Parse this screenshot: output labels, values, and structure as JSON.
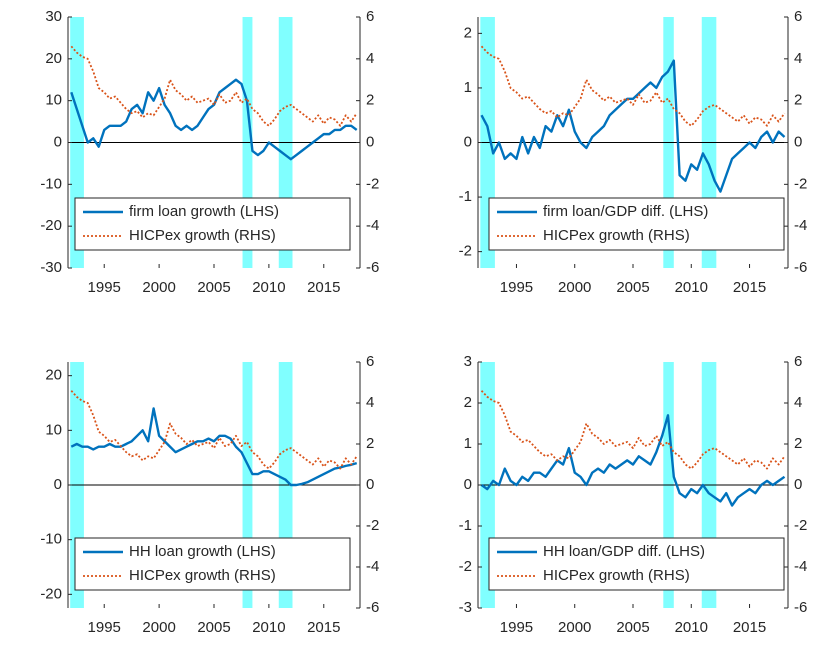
{
  "chart_data": [
    {
      "type": "line",
      "legend": "lower left",
      "xlim": [
        1991.7,
        2018.3
      ],
      "xticks": [
        1995,
        2000,
        2005,
        2010,
        2015
      ],
      "ylim": [
        -30,
        30
      ],
      "yticks": [
        30,
        20,
        10,
        0,
        -10,
        -20,
        -30
      ],
      "y2lim": [
        -6,
        6
      ],
      "y2ticks": [
        6,
        4,
        2,
        0,
        -2,
        -4,
        -6
      ],
      "hlines": [
        0
      ],
      "band_color": "#80ffff",
      "shaded_regions": [
        [
          1991.9,
          1993.15
        ],
        [
          2007.6,
          2008.5
        ],
        [
          2010.9,
          2012.15
        ]
      ],
      "x": [
        1992,
        1992.5,
        1993,
        1993.5,
        1994,
        1994.5,
        1995,
        1995.5,
        1996,
        1996.5,
        1997,
        1997.5,
        1998,
        1998.5,
        1999,
        1999.5,
        2000,
        2000.5,
        2001,
        2001.5,
        2002,
        2002.5,
        2003,
        2003.5,
        2004,
        2004.5,
        2005,
        2005.5,
        2006,
        2006.5,
        2007,
        2007.5,
        2008,
        2008.5,
        2009,
        2009.5,
        2010,
        2010.5,
        2011,
        2011.5,
        2012,
        2012.5,
        2013,
        2013.5,
        2014,
        2014.5,
        2015,
        2015.5,
        2016,
        2016.5,
        2017,
        2017.5,
        2018
      ],
      "series": [
        {
          "name": "firm loan growth (LHS)",
          "color": "#0072bd",
          "dash": "solid",
          "axis": "y",
          "values": [
            12,
            8,
            4,
            0,
            1,
            -1,
            3,
            4,
            4,
            4,
            5,
            8,
            9,
            7,
            12,
            10,
            13,
            9,
            7,
            4,
            3,
            4,
            3,
            4,
            6,
            8,
            9,
            12,
            13,
            14,
            15,
            14,
            10,
            -2,
            -3,
            -2,
            0,
            -1,
            -2,
            -3,
            -4,
            -3,
            -2,
            -1,
            0,
            1,
            2,
            2,
            3,
            3,
            4,
            4,
            3
          ]
        },
        {
          "name": "HICPex growth (RHS)",
          "color": "#d95319",
          "dash": "dotted",
          "axis": "y2",
          "values": [
            4.6,
            4.3,
            4.1,
            4.0,
            3.4,
            2.6,
            2.4,
            2.1,
            2.2,
            1.9,
            1.6,
            1.4,
            1.5,
            1.2,
            1.4,
            1.3,
            1.7,
            2.1,
            3.0,
            2.5,
            2.3,
            2.0,
            2.2,
            1.9,
            2.0,
            2.1,
            1.8,
            2.3,
            1.9,
            2.0,
            2.4,
            1.9,
            2.1,
            1.6,
            1.4,
            1.0,
            0.8,
            1.1,
            1.5,
            1.7,
            1.8,
            1.6,
            1.4,
            1.2,
            1.0,
            1.3,
            0.9,
            1.2,
            1.1,
            0.8,
            1.3,
            1.0,
            1.4
          ]
        }
      ]
    },
    {
      "type": "line",
      "legend": "lower right",
      "xlim": [
        1991.7,
        2018.3
      ],
      "xticks": [
        1995,
        2000,
        2005,
        2010,
        2015
      ],
      "ylim": [
        -2.3,
        2.3
      ],
      "yticks": [
        2,
        1,
        0,
        -1,
        -2
      ],
      "y2lim": [
        -6,
        6
      ],
      "y2ticks": [
        6,
        4,
        2,
        0,
        -2,
        -4,
        -6
      ],
      "hlines": [
        0
      ],
      "band_color": "#80ffff",
      "shaded_regions": [
        [
          1991.9,
          1993.15
        ],
        [
          2007.6,
          2008.5
        ],
        [
          2010.9,
          2012.15
        ]
      ],
      "x": [
        1992,
        1992.5,
        1993,
        1993.5,
        1994,
        1994.5,
        1995,
        1995.5,
        1996,
        1996.5,
        1997,
        1997.5,
        1998,
        1998.5,
        1999,
        1999.5,
        2000,
        2000.5,
        2001,
        2001.5,
        2002,
        2002.5,
        2003,
        2003.5,
        2004,
        2004.5,
        2005,
        2005.5,
        2006,
        2006.5,
        2007,
        2007.5,
        2008,
        2008.5,
        2009,
        2009.5,
        2010,
        2010.5,
        2011,
        2011.5,
        2012,
        2012.5,
        2013,
        2013.5,
        2014,
        2014.5,
        2015,
        2015.5,
        2016,
        2016.5,
        2017,
        2017.5,
        2018
      ],
      "series": [
        {
          "name": "firm loan/GDP diff. (LHS)",
          "color": "#0072bd",
          "dash": "solid",
          "axis": "y",
          "values": [
            0.5,
            0.3,
            -0.2,
            0.0,
            -0.3,
            -0.2,
            -0.3,
            0.1,
            -0.2,
            0.1,
            -0.1,
            0.3,
            0.2,
            0.5,
            0.3,
            0.6,
            0.2,
            0.0,
            -0.1,
            0.1,
            0.2,
            0.3,
            0.5,
            0.6,
            0.7,
            0.8,
            0.8,
            0.9,
            1.0,
            1.1,
            1.0,
            1.2,
            1.3,
            1.5,
            -0.6,
            -0.7,
            -0.4,
            -0.5,
            -0.2,
            -0.4,
            -0.7,
            -0.9,
            -0.6,
            -0.3,
            -0.2,
            -0.1,
            0.0,
            -0.1,
            0.1,
            0.2,
            0.0,
            0.2,
            0.1
          ]
        },
        {
          "name": "HICPex growth (RHS)",
          "color": "#d95319",
          "dash": "dotted",
          "axis": "y2",
          "values": [
            4.6,
            4.3,
            4.1,
            4.0,
            3.4,
            2.6,
            2.4,
            2.1,
            2.2,
            1.9,
            1.6,
            1.4,
            1.5,
            1.2,
            1.4,
            1.3,
            1.7,
            2.1,
            3.0,
            2.5,
            2.3,
            2.0,
            2.2,
            1.9,
            2.0,
            2.1,
            1.8,
            2.3,
            1.9,
            2.0,
            2.4,
            1.9,
            2.1,
            1.6,
            1.4,
            1.0,
            0.8,
            1.1,
            1.5,
            1.7,
            1.8,
            1.6,
            1.4,
            1.2,
            1.0,
            1.3,
            0.9,
            1.2,
            1.1,
            0.8,
            1.3,
            1.0,
            1.4
          ]
        }
      ]
    },
    {
      "type": "line",
      "legend": "lower left",
      "xlim": [
        1991.7,
        2018.3
      ],
      "xticks": [
        1995,
        2000,
        2005,
        2010,
        2015
      ],
      "ylim": [
        -22.5,
        22.5
      ],
      "yticks": [
        20,
        10,
        0,
        -10,
        -20
      ],
      "y2lim": [
        -6,
        6
      ],
      "y2ticks": [
        6,
        4,
        2,
        0,
        -2,
        -4,
        -6
      ],
      "hlines": [
        0
      ],
      "band_color": "#80ffff",
      "shaded_regions": [
        [
          1991.9,
          1993.15
        ],
        [
          2007.6,
          2008.5
        ],
        [
          2010.9,
          2012.15
        ]
      ],
      "x": [
        1992,
        1992.5,
        1993,
        1993.5,
        1994,
        1994.5,
        1995,
        1995.5,
        1996,
        1996.5,
        1997,
        1997.5,
        1998,
        1998.5,
        1999,
        1999.5,
        2000,
        2000.5,
        2001,
        2001.5,
        2002,
        2002.5,
        2003,
        2003.5,
        2004,
        2004.5,
        2005,
        2005.5,
        2006,
        2006.5,
        2007,
        2007.5,
        2008,
        2008.5,
        2009,
        2009.5,
        2010,
        2010.5,
        2011,
        2011.5,
        2012,
        2012.5,
        2013,
        2013.5,
        2014,
        2014.5,
        2015,
        2015.5,
        2016,
        2016.5,
        2017,
        2017.5,
        2018
      ],
      "series": [
        {
          "name": "HH loan growth (LHS)",
          "color": "#0072bd",
          "dash": "solid",
          "axis": "y",
          "values": [
            7,
            7.5,
            7,
            7,
            6.5,
            7,
            7,
            7.5,
            7,
            7,
            7.5,
            8,
            9,
            10,
            8,
            14,
            9,
            8,
            7,
            6,
            6.5,
            7,
            7.5,
            8,
            8,
            8.5,
            8,
            9,
            9,
            8.5,
            7,
            6,
            4,
            2,
            2,
            2.5,
            2.5,
            2,
            1.5,
            1,
            0,
            0,
            0.2,
            0.5,
            1,
            1.5,
            2,
            2.5,
            3,
            3.2,
            3.5,
            3.7,
            4
          ]
        },
        {
          "name": "HICPex growth (RHS)",
          "color": "#d95319",
          "dash": "dotted",
          "axis": "y2",
          "values": [
            4.6,
            4.3,
            4.1,
            4.0,
            3.4,
            2.6,
            2.4,
            2.1,
            2.2,
            1.9,
            1.6,
            1.4,
            1.5,
            1.2,
            1.4,
            1.3,
            1.7,
            2.1,
            3.0,
            2.5,
            2.3,
            2.0,
            2.2,
            1.9,
            2.0,
            2.1,
            1.8,
            2.3,
            1.9,
            2.0,
            2.4,
            1.9,
            2.1,
            1.6,
            1.4,
            1.0,
            0.8,
            1.1,
            1.5,
            1.7,
            1.8,
            1.6,
            1.4,
            1.2,
            1.0,
            1.3,
            0.9,
            1.2,
            1.1,
            0.8,
            1.3,
            1.0,
            1.4
          ]
        }
      ]
    },
    {
      "type": "line",
      "legend": "lower right",
      "xlim": [
        1991.7,
        2018.3
      ],
      "xticks": [
        1995,
        2000,
        2005,
        2010,
        2015
      ],
      "ylim": [
        -3,
        3
      ],
      "yticks": [
        3,
        2,
        1,
        0,
        -1,
        -2,
        -3
      ],
      "y2lim": [
        -6,
        6
      ],
      "y2ticks": [
        6,
        4,
        2,
        0,
        -2,
        -4,
        -6
      ],
      "hlines": [
        0
      ],
      "band_color": "#80ffff",
      "shaded_regions": [
        [
          1991.9,
          1993.15
        ],
        [
          2007.6,
          2008.5
        ],
        [
          2010.9,
          2012.15
        ]
      ],
      "x": [
        1992,
        1992.5,
        1993,
        1993.5,
        1994,
        1994.5,
        1995,
        1995.5,
        1996,
        1996.5,
        1997,
        1997.5,
        1998,
        1998.5,
        1999,
        1999.5,
        2000,
        2000.5,
        2001,
        2001.5,
        2002,
        2002.5,
        2003,
        2003.5,
        2004,
        2004.5,
        2005,
        2005.5,
        2006,
        2006.5,
        2007,
        2007.5,
        2008,
        2008.5,
        2009,
        2009.5,
        2010,
        2010.5,
        2011,
        2011.5,
        2012,
        2012.5,
        2013,
        2013.5,
        2014,
        2014.5,
        2015,
        2015.5,
        2016,
        2016.5,
        2017,
        2017.5,
        2018
      ],
      "series": [
        {
          "name": "HH loan/GDP diff. (LHS)",
          "color": "#0072bd",
          "dash": "solid",
          "axis": "y",
          "values": [
            0.0,
            -0.1,
            0.1,
            0.0,
            0.4,
            0.1,
            0.0,
            0.2,
            0.1,
            0.3,
            0.3,
            0.2,
            0.4,
            0.6,
            0.5,
            0.9,
            0.3,
            0.2,
            0.0,
            0.3,
            0.4,
            0.3,
            0.5,
            0.4,
            0.5,
            0.6,
            0.5,
            0.7,
            0.6,
            0.5,
            0.8,
            1.2,
            1.7,
            0.2,
            -0.2,
            -0.3,
            -0.1,
            -0.2,
            0.0,
            -0.2,
            -0.3,
            -0.4,
            -0.2,
            -0.5,
            -0.3,
            -0.2,
            -0.1,
            -0.2,
            0.0,
            0.1,
            0.0,
            0.1,
            0.2
          ]
        },
        {
          "name": "HICPex growth (RHS)",
          "color": "#d95319",
          "dash": "dotted",
          "axis": "y2",
          "values": [
            4.6,
            4.3,
            4.1,
            4.0,
            3.4,
            2.6,
            2.4,
            2.1,
            2.2,
            1.9,
            1.6,
            1.4,
            1.5,
            1.2,
            1.4,
            1.3,
            1.7,
            2.1,
            3.0,
            2.5,
            2.3,
            2.0,
            2.2,
            1.9,
            2.0,
            2.1,
            1.8,
            2.3,
            1.9,
            2.0,
            2.4,
            1.9,
            2.1,
            1.6,
            1.4,
            1.0,
            0.8,
            1.1,
            1.5,
            1.7,
            1.8,
            1.6,
            1.4,
            1.2,
            1.0,
            1.3,
            0.9,
            1.2,
            1.1,
            0.8,
            1.3,
            1.0,
            1.4
          ]
        }
      ]
    }
  ]
}
